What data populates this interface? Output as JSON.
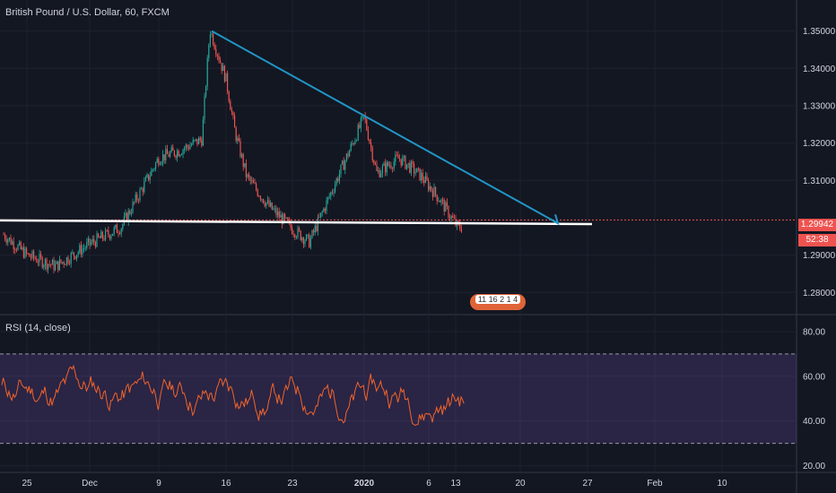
{
  "header": {
    "symbol_title": "British Pound / U.S. Dollar, 60, FXCM",
    "rsi_title": "RSI (14, close)"
  },
  "price_tag": "1.29942",
  "countdown_tag": "52:38",
  "events_badge": "11 16  2 1  4",
  "colors": {
    "background": "#131722",
    "candle_up": "#26a69a",
    "candle_down": "#ef5350",
    "trendline": "#2196c7",
    "support_line": "#ffffff",
    "rsi_line": "#f0642a",
    "rsi_band": "#7e57c2"
  },
  "chart_data": [
    {
      "type": "candlestick",
      "title": "British Pound / U.S. Dollar, 60, FXCM",
      "y_axis_ticks": [
        "1.35000",
        "1.34000",
        "1.33000",
        "1.32000",
        "1.31000",
        "1.29000",
        "1.28000"
      ],
      "ylim": [
        1.2755,
        1.3535
      ],
      "x_axis_ticks": [
        "25",
        "Dec",
        "9",
        "16",
        "23",
        "2020",
        "6",
        "13",
        "20",
        "27",
        "Feb",
        "10"
      ],
      "last_price": 1.29942,
      "approx_closes": [
        {
          "x": "25",
          "y": 1.29
        },
        {
          "x": "Dec",
          "y": 1.293
        },
        {
          "x": "Dec+3",
          "y": 1.2975
        },
        {
          "x": "Dec+5",
          "y": 1.312
        },
        {
          "x": "9",
          "y": 1.316
        },
        {
          "x": "Dec+12",
          "y": 1.318
        },
        {
          "x": "Dec+13",
          "y": 1.321
        },
        {
          "x": "Dec+13 peak",
          "y": 1.3505
        },
        {
          "x": "16",
          "y": 1.337
        },
        {
          "x": "Dec+18",
          "y": 1.311
        },
        {
          "x": "Dec+20",
          "y": 1.303
        },
        {
          "x": "23",
          "y": 1.297
        },
        {
          "x": "Dec+26",
          "y": 1.2985
        },
        {
          "x": "Dec+27",
          "y": 1.31
        },
        {
          "x": "2020",
          "y": 1.327
        },
        {
          "x": "Jan+2",
          "y": 1.312
        },
        {
          "x": "6",
          "y": 1.316
        },
        {
          "x": "Jan+8",
          "y": 1.311
        },
        {
          "x": "Jan+9",
          "y": 1.307
        },
        {
          "x": "Jan+10",
          "y": 1.305
        },
        {
          "x": "13",
          "y": 1.2994
        }
      ],
      "drawings": {
        "trendline": [
          {
            "x": "Dec+13 peak",
            "y": 1.35
          },
          {
            "x": "Jan+23",
            "y": 1.2985
          }
        ],
        "support_line": [
          {
            "x": "start",
            "y": 1.2993
          },
          {
            "x": "Jan+23",
            "y": 1.2983
          }
        ]
      }
    },
    {
      "type": "line",
      "title": "RSI (14, close)",
      "y_axis_ticks": [
        "80.00",
        "60.00",
        "40.00",
        "20.00"
      ],
      "ylim": [
        17,
        86
      ],
      "band": [
        30,
        70
      ],
      "x": [
        "25",
        "Dec",
        "9",
        "16",
        "23",
        "2020",
        "6",
        "13"
      ],
      "values": [
        55,
        46,
        60,
        48,
        40,
        65,
        55,
        42
      ]
    }
  ]
}
